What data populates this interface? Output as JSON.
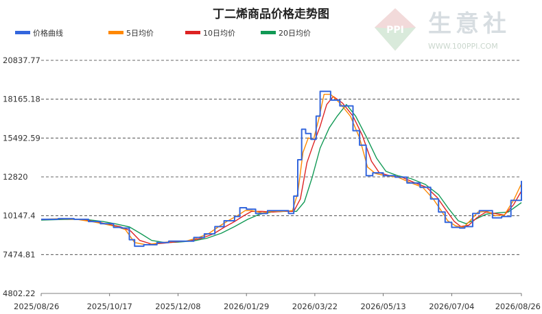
{
  "watermark": {
    "brand": "生意社",
    "url": "WWW.100PPI.COM",
    "logo_text": "PPI"
  },
  "chart_data": {
    "type": "line",
    "title": "丁二烯商品价格走势图",
    "legend_position": "top-left",
    "grid": "horizontal-dashed",
    "ylim": [
      4802.22,
      20837.77
    ],
    "y_ticks": [
      "20837.77",
      "18165.18",
      "15492.59",
      "12820",
      "10147.4",
      "7474.81",
      "4802.22"
    ],
    "x_ticks": [
      "2025/08/26",
      "2025/10/17",
      "2025/12/08",
      "2026/01/29",
      "2026/03/22",
      "2026/05/13",
      "2026/07/04",
      "2026/08/26"
    ],
    "colors": {
      "price": "#3366dd",
      "ma5": "#ff8800",
      "ma10": "#dd2222",
      "ma20": "#119955"
    },
    "series": [
      {
        "name": "价格曲线",
        "key": "price",
        "points": [
          [
            "2025/08/26",
            9900
          ],
          [
            "2025/09/08",
            9950
          ],
          [
            "2025/09/20",
            9900
          ],
          [
            "2025/10/01",
            9750
          ],
          [
            "2025/10/10",
            9600
          ],
          [
            "2025/10/20",
            9350
          ],
          [
            "2025/10/26",
            9300
          ],
          [
            "2025/11/01",
            8500
          ],
          [
            "2025/11/05",
            8050
          ],
          [
            "2025/11/12",
            8150
          ],
          [
            "2025/11/22",
            8300
          ],
          [
            "2025/12/01",
            8400
          ],
          [
            "2025/12/12",
            8400
          ],
          [
            "2025/12/20",
            8650
          ],
          [
            "2025/12/28",
            8900
          ],
          [
            "2026/01/05",
            9400
          ],
          [
            "2026/01/12",
            9800
          ],
          [
            "2026/01/20",
            10100
          ],
          [
            "2026/01/24",
            10700
          ],
          [
            "2026/01/29",
            10600
          ],
          [
            "2026/02/05",
            10300
          ],
          [
            "2026/02/14",
            10500
          ],
          [
            "2026/02/22",
            10500
          ],
          [
            "2026/03/02",
            10300
          ],
          [
            "2026/03/06",
            11500
          ],
          [
            "2026/03/09",
            14000
          ],
          [
            "2026/03/12",
            16100
          ],
          [
            "2026/03/15",
            15800
          ],
          [
            "2026/03/19",
            15400
          ],
          [
            "2026/03/23",
            17000
          ],
          [
            "2026/03/26",
            18700
          ],
          [
            "2026/03/30",
            18700
          ],
          [
            "2026/04/03",
            18100
          ],
          [
            "2026/04/10",
            17700
          ],
          [
            "2026/04/20",
            16000
          ],
          [
            "2026/04/25",
            15000
          ],
          [
            "2026/04/30",
            12900
          ],
          [
            "2026/05/05",
            13100
          ],
          [
            "2026/05/13",
            12900
          ],
          [
            "2026/05/22",
            12800
          ],
          [
            "2026/05/31",
            12400
          ],
          [
            "2026/06/10",
            12100
          ],
          [
            "2026/06/18",
            11300
          ],
          [
            "2026/06/24",
            10400
          ],
          [
            "2026/06/29",
            9700
          ],
          [
            "2026/07/04",
            9350
          ],
          [
            "2026/07/10",
            9300
          ],
          [
            "2026/07/14",
            9400
          ],
          [
            "2026/07/20",
            10300
          ],
          [
            "2026/07/25",
            10500
          ],
          [
            "2026/07/30",
            10500
          ],
          [
            "2026/08/04",
            10000
          ],
          [
            "2026/08/11",
            10100
          ],
          [
            "2026/08/18",
            11200
          ],
          [
            "2026/08/26",
            12550
          ]
        ]
      },
      {
        "name": "5日均价",
        "key": "ma5",
        "points": [
          [
            "2025/08/26",
            9900
          ],
          [
            "2025/09/10",
            9950
          ],
          [
            "2025/09/22",
            9900
          ],
          [
            "2025/10/03",
            9750
          ],
          [
            "2025/10/12",
            9600
          ],
          [
            "2025/10/22",
            9400
          ],
          [
            "2025/10/29",
            9200
          ],
          [
            "2025/11/05",
            8300
          ],
          [
            "2025/11/14",
            8150
          ],
          [
            "2025/11/24",
            8280
          ],
          [
            "2025/12/04",
            8380
          ],
          [
            "2025/12/14",
            8400
          ],
          [
            "2025/12/22",
            8600
          ],
          [
            "2025/12/31",
            8900
          ],
          [
            "2026/01/08",
            9400
          ],
          [
            "2026/01/15",
            9800
          ],
          [
            "2026/01/23",
            10200
          ],
          [
            "2026/01/28",
            10500
          ],
          [
            "2026/02/02",
            10500
          ],
          [
            "2026/02/10",
            10350
          ],
          [
            "2026/02/18",
            10450
          ],
          [
            "2026/02/26",
            10450
          ],
          [
            "2026/03/05",
            10500
          ],
          [
            "2026/03/09",
            11700
          ],
          [
            "2026/03/13",
            14500
          ],
          [
            "2026/03/17",
            15500
          ],
          [
            "2026/03/21",
            15400
          ],
          [
            "2026/03/25",
            16800
          ],
          [
            "2026/03/29",
            18500
          ],
          [
            "2026/04/03",
            18500
          ],
          [
            "2026/04/10",
            17900
          ],
          [
            "2026/04/18",
            17000
          ],
          [
            "2026/04/25",
            15500
          ],
          [
            "2026/05/01",
            13500
          ],
          [
            "2026/05/07",
            13050
          ],
          [
            "2026/05/15",
            12900
          ],
          [
            "2026/05/24",
            12800
          ],
          [
            "2026/06/02",
            12450
          ],
          [
            "2026/06/12",
            12100
          ],
          [
            "2026/06/20",
            11300
          ],
          [
            "2026/06/26",
            10500
          ],
          [
            "2026/07/01",
            9800
          ],
          [
            "2026/07/07",
            9450
          ],
          [
            "2026/07/13",
            9350
          ],
          [
            "2026/07/18",
            9800
          ],
          [
            "2026/07/24",
            10400
          ],
          [
            "2026/07/31",
            10450
          ],
          [
            "2026/08/06",
            10150
          ],
          [
            "2026/08/13",
            10200
          ],
          [
            "2026/08/20",
            11200
          ],
          [
            "2026/08/26",
            12350
          ]
        ]
      },
      {
        "name": "10日均价",
        "key": "ma10",
        "points": [
          [
            "2025/08/26",
            9880
          ],
          [
            "2025/09/12",
            9930
          ],
          [
            "2025/09/25",
            9890
          ],
          [
            "2025/10/06",
            9750
          ],
          [
            "2025/10/15",
            9580
          ],
          [
            "2025/10/25",
            9400
          ],
          [
            "2025/11/02",
            9100
          ],
          [
            "2025/11/09",
            8450
          ],
          [
            "2025/11/18",
            8200
          ],
          [
            "2025/11/28",
            8270
          ],
          [
            "2025/12/08",
            8370
          ],
          [
            "2025/12/17",
            8420
          ],
          [
            "2025/12/26",
            8600
          ],
          [
            "2026/01/04",
            8900
          ],
          [
            "2026/01/12",
            9350
          ],
          [
            "2026/01/20",
            9750
          ],
          [
            "2026/01/27",
            10150
          ],
          [
            "2026/02/02",
            10450
          ],
          [
            "2026/02/10",
            10450
          ],
          [
            "2026/02/18",
            10400
          ],
          [
            "2026/02/26",
            10450
          ],
          [
            "2026/03/06",
            10450
          ],
          [
            "2026/03/11",
            11300
          ],
          [
            "2026/03/16",
            13800
          ],
          [
            "2026/03/21",
            15100
          ],
          [
            "2026/03/26",
            16300
          ],
          [
            "2026/03/31",
            17800
          ],
          [
            "2026/04/05",
            18350
          ],
          [
            "2026/04/12",
            17900
          ],
          [
            "2026/04/20",
            17000
          ],
          [
            "2026/04/27",
            15700
          ],
          [
            "2026/05/04",
            13900
          ],
          [
            "2026/05/10",
            13100
          ],
          [
            "2026/05/18",
            12900
          ],
          [
            "2026/05/27",
            12800
          ],
          [
            "2026/06/05",
            12450
          ],
          [
            "2026/06/15",
            12100
          ],
          [
            "2026/06/23",
            11400
          ],
          [
            "2026/06/30",
            10500
          ],
          [
            "2026/07/06",
            9750
          ],
          [
            "2026/07/11",
            9400
          ],
          [
            "2026/07/17",
            9500
          ],
          [
            "2026/07/23",
            10000
          ],
          [
            "2026/07/30",
            10400
          ],
          [
            "2026/08/06",
            10300
          ],
          [
            "2026/08/13",
            10200
          ],
          [
            "2026/08/20",
            10900
          ],
          [
            "2026/08/26",
            11850
          ]
        ]
      },
      {
        "name": "20日均价",
        "key": "ma20",
        "points": [
          [
            "2025/08/26",
            9850
          ],
          [
            "2025/09/15",
            9900
          ],
          [
            "2025/09/30",
            9880
          ],
          [
            "2025/10/12",
            9750
          ],
          [
            "2025/10/22",
            9580
          ],
          [
            "2025/11/01",
            9380
          ],
          [
            "2025/11/10",
            8900
          ],
          [
            "2025/11/18",
            8450
          ],
          [
            "2025/11/28",
            8300
          ],
          [
            "2025/12/08",
            8330
          ],
          [
            "2025/12/20",
            8420
          ],
          [
            "2025/12/30",
            8600
          ],
          [
            "2026/01/10",
            8950
          ],
          [
            "2026/01/20",
            9400
          ],
          [
            "2026/01/30",
            9900
          ],
          [
            "2026/02/08",
            10250
          ],
          [
            "2026/02/18",
            10420
          ],
          [
            "2026/02/28",
            10450
          ],
          [
            "2026/03/08",
            10450
          ],
          [
            "2026/03/14",
            11100
          ],
          [
            "2026/03/20",
            12800
          ],
          [
            "2026/03/26",
            14800
          ],
          [
            "2026/04/02",
            16200
          ],
          [
            "2026/04/08",
            17000
          ],
          [
            "2026/04/15",
            17800
          ],
          [
            "2026/04/22",
            17000
          ],
          [
            "2026/04/30",
            15600
          ],
          [
            "2026/05/08",
            14100
          ],
          [
            "2026/05/15",
            13200
          ],
          [
            "2026/05/24",
            12900
          ],
          [
            "2026/06/03",
            12700
          ],
          [
            "2026/06/14",
            12300
          ],
          [
            "2026/06/24",
            11600
          ],
          [
            "2026/07/02",
            10600
          ],
          [
            "2026/07/09",
            9800
          ],
          [
            "2026/07/15",
            9600
          ],
          [
            "2026/07/22",
            9900
          ],
          [
            "2026/07/30",
            10250
          ],
          [
            "2026/08/08",
            10350
          ],
          [
            "2026/08/16",
            10400
          ],
          [
            "2026/08/26",
            11050
          ]
        ]
      }
    ]
  }
}
